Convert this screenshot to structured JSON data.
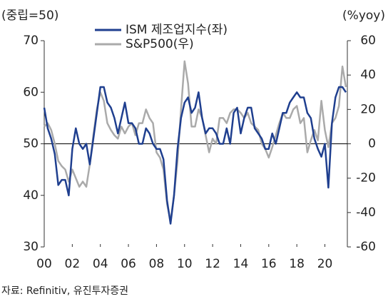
{
  "chart_data": {
    "type": "line",
    "y_axis_label": "(중립=50)",
    "y2_axis_label": "(%yoy)",
    "source": "자료: Refinitiv, 유진투자증권",
    "x": [
      2000,
      2000.25,
      2000.5,
      2000.75,
      2001,
      2001.25,
      2001.5,
      2001.75,
      2002,
      2002.25,
      2002.5,
      2002.75,
      2003,
      2003.25,
      2003.5,
      2003.75,
      2004,
      2004.25,
      2004.5,
      2004.75,
      2005,
      2005.25,
      2005.5,
      2005.75,
      2006,
      2006.25,
      2006.5,
      2006.75,
      2007,
      2007.25,
      2007.5,
      2007.75,
      2008,
      2008.25,
      2008.5,
      2008.75,
      2009,
      2009.25,
      2009.5,
      2009.75,
      2010,
      2010.25,
      2010.5,
      2010.75,
      2011,
      2011.25,
      2011.5,
      2011.75,
      2012,
      2012.25,
      2012.5,
      2012.75,
      2013,
      2013.25,
      2013.5,
      2013.75,
      2014,
      2014.25,
      2014.5,
      2014.75,
      2015,
      2015.25,
      2015.5,
      2015.75,
      2016,
      2016.25,
      2016.5,
      2016.75,
      2017,
      2017.25,
      2017.5,
      2017.75,
      2018,
      2018.25,
      2018.5,
      2018.75,
      2019,
      2019.25,
      2019.5,
      2019.75,
      2020,
      2020.25,
      2020.5,
      2020.75,
      2021,
      2021.25,
      2021.5
    ],
    "series": [
      {
        "name": "ISM 제조업지수(좌)",
        "color": "#1f3f8f",
        "axis": "y",
        "values": [
          57,
          53,
          51,
          48,
          42,
          43,
          43,
          40,
          49,
          53,
          50,
          49,
          50,
          46,
          51,
          56,
          61,
          61,
          58,
          57,
          55,
          52,
          55,
          58,
          54,
          54,
          53,
          50,
          50,
          53,
          52,
          50,
          49,
          49,
          47,
          39,
          34.5,
          40,
          49,
          55,
          58,
          59,
          56,
          57,
          60,
          55,
          52,
          53,
          53,
          52,
          50,
          50,
          53,
          50,
          56,
          57,
          52,
          55,
          57,
          57,
          53,
          52,
          51,
          49,
          49,
          52,
          50,
          53,
          56,
          56,
          58,
          59,
          60,
          59,
          59,
          56,
          55,
          51,
          49,
          47.5,
          50,
          41.5,
          54,
          59,
          61,
          61,
          60
        ]
      },
      {
        "name": "S&P500(우)",
        "color": "#aaaaaa",
        "axis": "y2",
        "values": [
          10,
          12,
          8,
          0,
          -10,
          -13,
          -15,
          -22,
          -15,
          -20,
          -25,
          -22,
          -25,
          -12,
          5,
          20,
          30,
          25,
          12,
          8,
          5,
          3,
          10,
          6,
          10,
          12,
          5,
          12,
          12,
          20,
          15,
          12,
          -5,
          -8,
          -15,
          -35,
          -45,
          -30,
          -10,
          20,
          48,
          35,
          10,
          10,
          20,
          15,
          5,
          -5,
          3,
          0,
          15,
          15,
          12,
          18,
          20,
          20,
          18,
          15,
          18,
          12,
          10,
          8,
          0,
          -3,
          -8,
          -2,
          5,
          12,
          18,
          15,
          15,
          20,
          22,
          12,
          15,
          -5,
          2,
          8,
          2,
          25,
          8,
          -2,
          12,
          15,
          22,
          45,
          33
        ]
      }
    ],
    "xlim": [
      2000,
      2021.6
    ],
    "xticks": [
      {
        "value": 2000,
        "label": "00"
      },
      {
        "value": 2002,
        "label": "02"
      },
      {
        "value": 2004,
        "label": "04"
      },
      {
        "value": 2006,
        "label": "06"
      },
      {
        "value": 2008,
        "label": "08"
      },
      {
        "value": 2010,
        "label": "10"
      },
      {
        "value": 2012,
        "label": "12"
      },
      {
        "value": 2014,
        "label": "14"
      },
      {
        "value": 2016,
        "label": "16"
      },
      {
        "value": 2018,
        "label": "18"
      },
      {
        "value": 2020,
        "label": "20"
      }
    ],
    "ylim": [
      30,
      70
    ],
    "yticks": [
      30,
      40,
      50,
      60,
      70
    ],
    "y2lim": [
      -60,
      60
    ],
    "y2ticks": [
      -60,
      -40,
      -20,
      0,
      20,
      40,
      60
    ],
    "axhline": 50
  }
}
